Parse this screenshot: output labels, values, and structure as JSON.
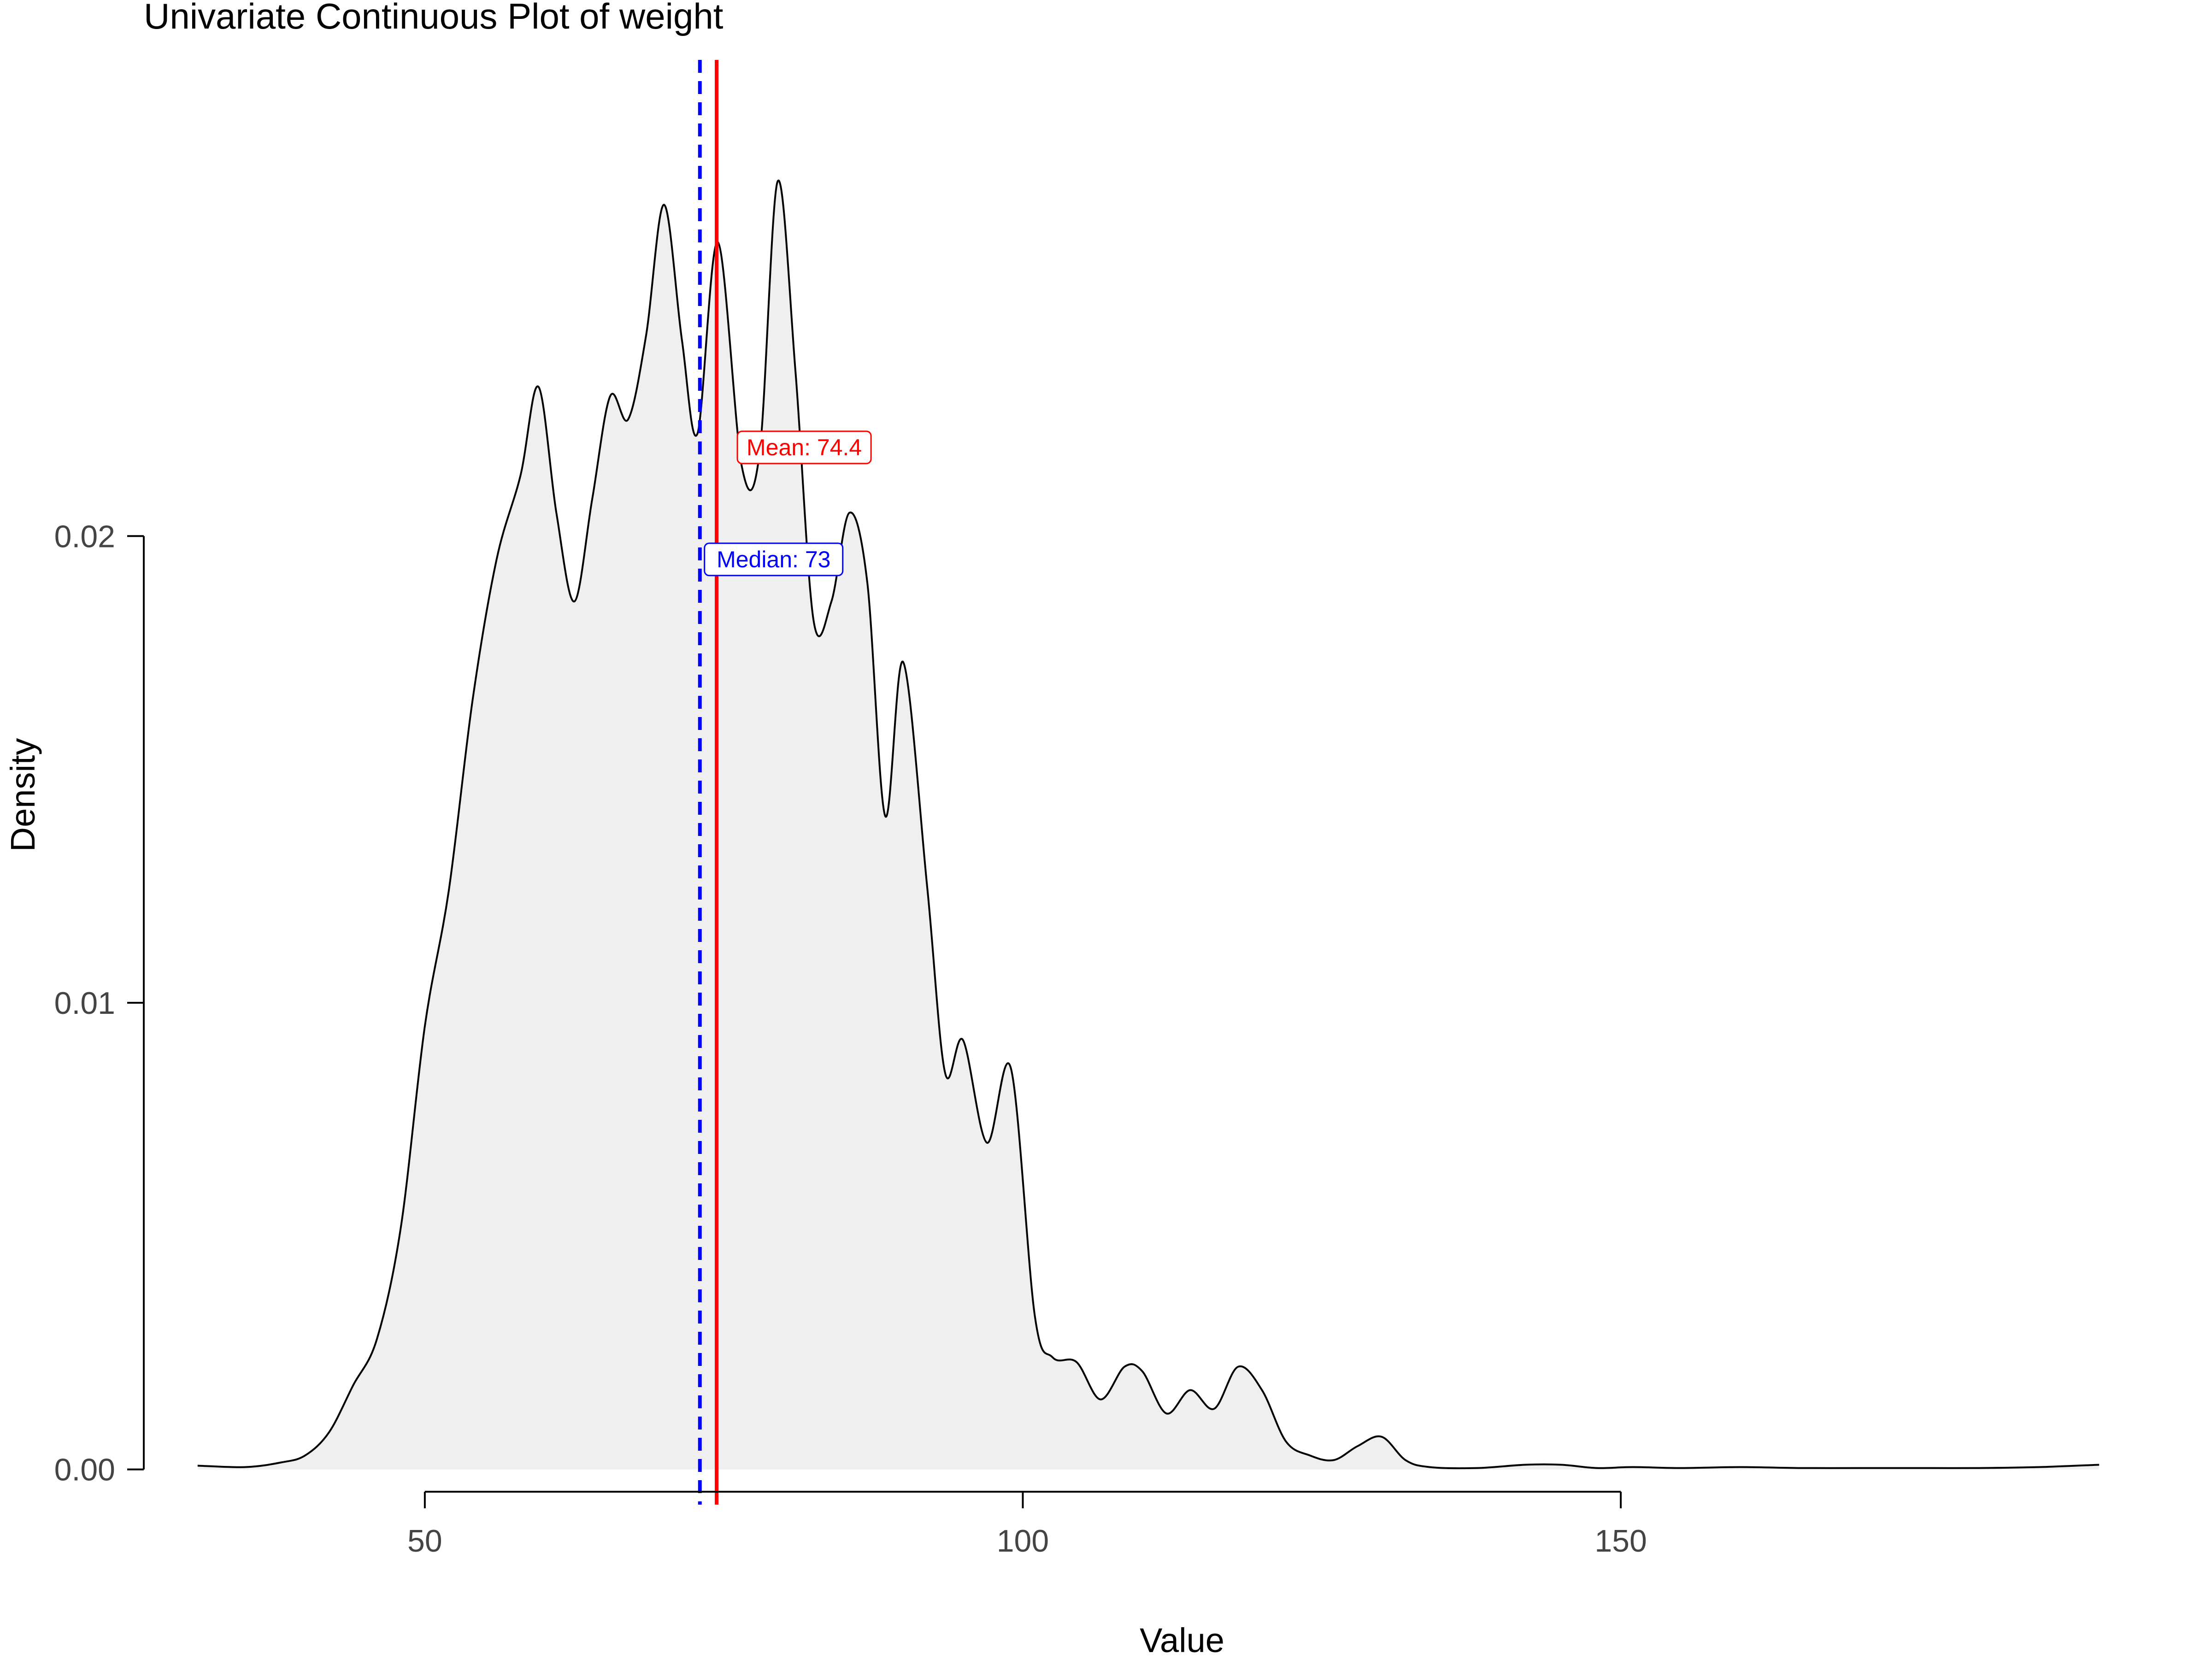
{
  "chart_data": {
    "type": "area",
    "title": "Univariate Continuous Plot of weight",
    "xlabel": "Value",
    "ylabel": "Density",
    "xlim": [
      26.5,
      192.5
    ],
    "ylim": [
      -0.0011,
      0.0305
    ],
    "x_ticks": [
      50,
      100,
      150
    ],
    "x_tick_labels": [
      "50",
      "100",
      "150"
    ],
    "y_ticks": [
      0.0,
      0.01,
      0.02
    ],
    "y_tick_labels": [
      "0.00",
      "0.01",
      "0.02"
    ],
    "grid": false,
    "legend": "none",
    "fill_color": "#efefef",
    "line_color": "#000000",
    "series": [
      {
        "x": [
          31,
          35,
          38,
          40,
          42,
          44,
          46,
          48,
          50,
          52,
          54,
          56,
          58,
          59.5,
          61,
          62.5,
          64,
          65.5,
          67,
          68.5,
          70,
          71.5,
          72.8,
          74.5,
          76.5,
          78,
          79.5,
          81,
          82.5,
          84,
          85.5,
          87,
          88.5,
          90,
          92,
          93.5,
          95,
          97,
          99,
          101,
          102.5,
          104.5,
          106.5,
          108.5,
          110,
          112,
          114,
          116,
          118,
          120,
          122,
          124,
          126,
          128,
          130,
          132,
          134,
          138,
          142,
          145,
          148,
          151,
          155,
          160,
          165,
          170,
          175,
          180,
          185,
          190
        ],
        "y": [
          8e-05,
          5e-05,
          0.00015,
          0.0003,
          0.0008,
          0.0018,
          0.0028,
          0.0052,
          0.0095,
          0.0124,
          0.0165,
          0.0195,
          0.0213,
          0.0232,
          0.0205,
          0.0186,
          0.0208,
          0.023,
          0.0225,
          0.0243,
          0.0271,
          0.0242,
          0.0222,
          0.0263,
          0.0215,
          0.0218,
          0.0276,
          0.0235,
          0.0182,
          0.0186,
          0.0205,
          0.019,
          0.014,
          0.0173,
          0.0125,
          0.0085,
          0.0092,
          0.007,
          0.0086,
          0.0033,
          0.0024,
          0.0023,
          0.0015,
          0.0022,
          0.0021,
          0.0012,
          0.0017,
          0.0013,
          0.0022,
          0.0017,
          0.0006,
          0.0003,
          0.0002,
          0.0005,
          0.0007,
          0.0002,
          5e-05,
          3e-05,
          0.0001,
          0.0001,
          3e-05,
          5e-05,
          3e-05,
          5e-05,
          3e-05,
          3e-05,
          3e-05,
          3e-05,
          5e-05,
          0.0001
        ]
      }
    ],
    "annotations": [
      {
        "name": "mean",
        "label": "Mean: 74.4",
        "x": 74.4,
        "label_y": 0.0219,
        "color": "#ff0000",
        "line_style": "solid"
      },
      {
        "name": "median",
        "label": "Median: 73",
        "x": 73,
        "label_y": 0.0195,
        "color": "#0000ff",
        "line_style": "dashed"
      }
    ]
  }
}
